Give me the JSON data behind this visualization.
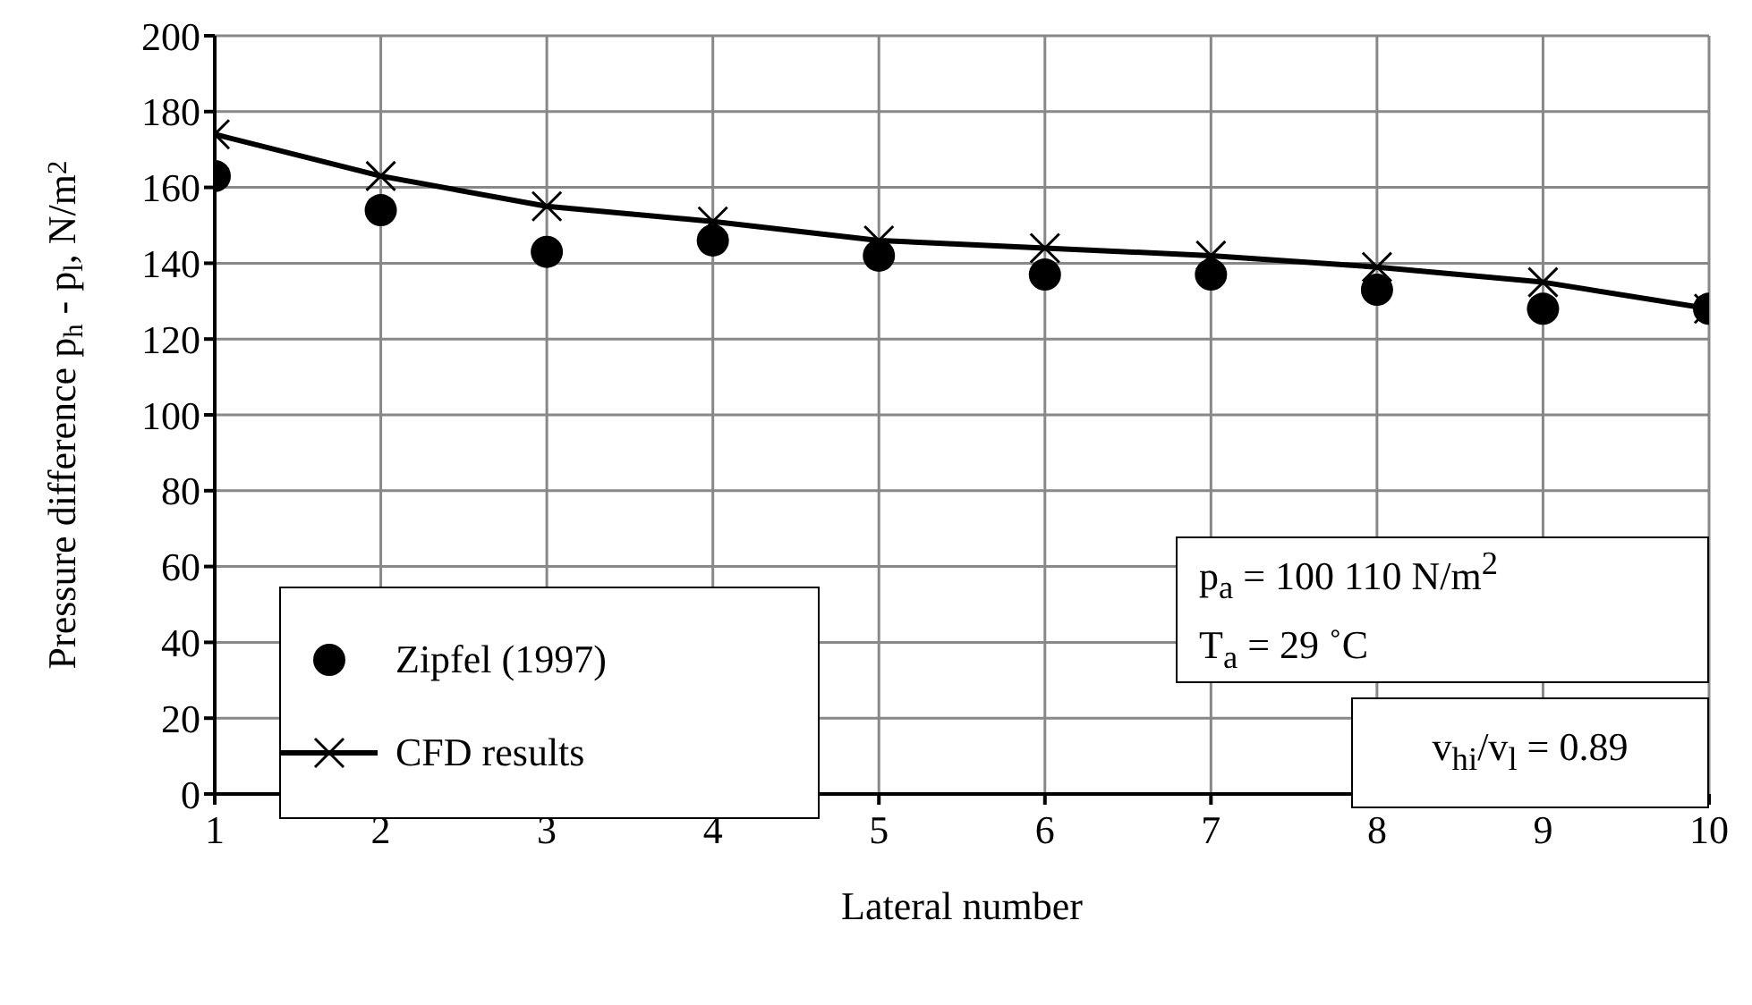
{
  "chart_data": {
    "type": "line",
    "xlabel": "Lateral number",
    "ylabel": "Pressure difference p$_{h}$ - p$_{l}$, N/m$^{2}$",
    "x": [
      1,
      2,
      3,
      4,
      5,
      6,
      7,
      8,
      9,
      10
    ],
    "series": [
      {
        "name": "Zipfel (1997)",
        "type": "scatter",
        "marker": "circle",
        "color": "#000000",
        "values": [
          163,
          154,
          143,
          146,
          142,
          137,
          137,
          133,
          128,
          128
        ]
      },
      {
        "name": "CFD results",
        "marker": "cross",
        "color": "#000000",
        "values": [
          174,
          163,
          155,
          151,
          146,
          144,
          142,
          139,
          135,
          128
        ]
      }
    ],
    "xlim": [
      1,
      10
    ],
    "xticks": [
      1,
      2,
      3,
      4,
      5,
      6,
      7,
      8,
      9,
      10
    ],
    "ylim": [
      0,
      200
    ],
    "yticks": [
      0,
      20,
      40,
      60,
      80,
      100,
      120,
      140,
      160,
      180,
      200
    ],
    "grid": true,
    "legend": "bottom left",
    "annotations": [
      "p$_{a}$ = 100 110 N/m$^{2}$",
      "T$_{a}$ = 29 ˚C",
      "v$_{hi}$/v$_{l}$ = 0.89"
    ]
  }
}
